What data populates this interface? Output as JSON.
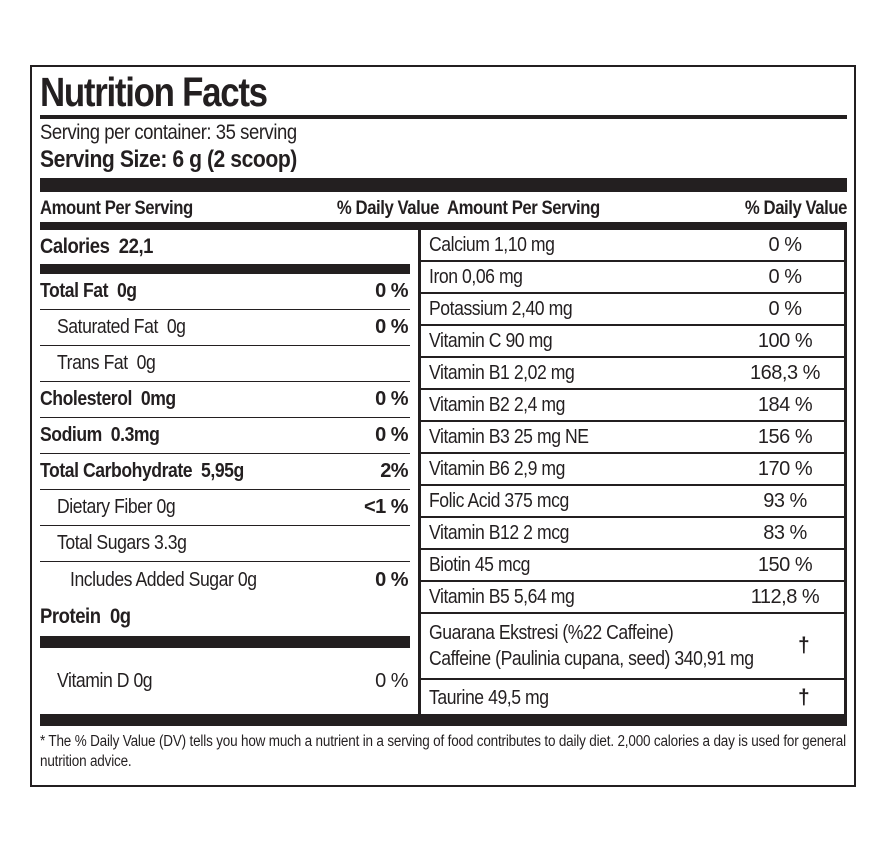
{
  "colors": {
    "ink": "#231f20",
    "bg": "#ffffff"
  },
  "header": {
    "title": "Nutrition Facts",
    "serving_per_container": "Serving per container: 35 serving",
    "serving_size": "Serving Size: 6 g (2 scoop)"
  },
  "columns_header": {
    "amount": "Amount Per Serving",
    "daily_value": "% Daily Value"
  },
  "left": {
    "calories": "Calories  22,1",
    "rows": [
      {
        "label": "Total Fat  0g",
        "value": "0 %"
      },
      {
        "label": "Saturated Fat  0g",
        "value": "0 %"
      },
      {
        "label": "Trans Fat  0g",
        "value": ""
      },
      {
        "label": "Cholesterol  0mg",
        "value": "0 %"
      },
      {
        "label": "Sodium  0.3mg",
        "value": "0 %"
      },
      {
        "label": "Total Carbohydrate  5,95g",
        "value": "2%"
      },
      {
        "label": "Dietary Fiber 0g",
        "value": "<1 %"
      },
      {
        "label": "Total Sugars 3.3g",
        "value": ""
      },
      {
        "label": "Includes Added Sugar 0g",
        "value": "0 %"
      }
    ],
    "protein": "Protein  0g",
    "vitamin_d": {
      "label": "Vitamin D 0g",
      "value": "0 %"
    }
  },
  "right": {
    "rows": [
      {
        "label": "Calcium 1,10 mg",
        "value": "0 %"
      },
      {
        "label": "Iron 0,06 mg",
        "value": "0 %"
      },
      {
        "label": "Potassium 2,40 mg",
        "value": "0 %"
      },
      {
        "label": "Vitamin C 90 mg",
        "value": "100 %"
      },
      {
        "label": "Vitamin B1 2,02 mg",
        "value": "168,3 %"
      },
      {
        "label": "Vitamin B2 2,4 mg",
        "value": "184 %"
      },
      {
        "label": "Vitamin B3 25 mg NE",
        "value": "156 %"
      },
      {
        "label": "Vitamin B6 2,9 mg",
        "value": "170 %"
      },
      {
        "label": "Folic Acid 375 mcg",
        "value": "93 %"
      },
      {
        "label": "Vitamin B12 2 mcg",
        "value": "83 %"
      },
      {
        "label": "Biotin 45 mcg",
        "value": "150 %"
      },
      {
        "label": "Vitamin B5 5,64 mg",
        "value": "112,8 %"
      }
    ],
    "guarana": {
      "label_line1": "Guarana Ekstresi (%22 Caffeine)",
      "label_line2": "Caffeine (Paulinia cupana, seed) 340,91 mg",
      "value": "†"
    },
    "taurine": {
      "label": "Taurine 49,5 mg",
      "value": "†"
    }
  },
  "footnote": "* The % Daily Value (DV) tells you how much a nutrient in a serving of food contributes to daily diet. 2,000 calories a day is used for general nutrition advice."
}
